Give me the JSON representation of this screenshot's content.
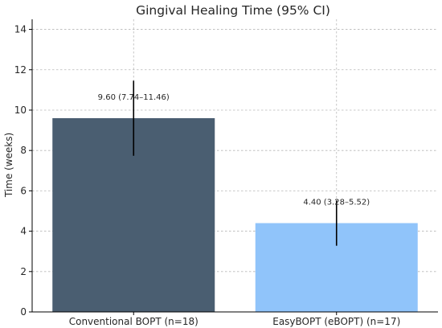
{
  "chart_data": {
    "type": "bar",
    "title": "Gingival Healing Time (95% CI)",
    "xlabel": "",
    "ylabel": "Time (weeks)",
    "ylim": [
      0,
      14.5
    ],
    "yticks": [
      0,
      2,
      4,
      6,
      8,
      10,
      12,
      14
    ],
    "grid": true,
    "categories": [
      "Conventional BOPT (n=18)",
      "EasyBOPT (eBOPT) (n=17)"
    ],
    "values": [
      9.6,
      4.4
    ],
    "ci_lower": [
      7.74,
      3.28
    ],
    "ci_upper": [
      11.46,
      5.52
    ],
    "data_labels": [
      "9.60 (7.74–11.46)",
      "4.40 (3.28–5.52)"
    ],
    "colors": [
      "#4a5e71",
      "#90c4fa"
    ]
  }
}
